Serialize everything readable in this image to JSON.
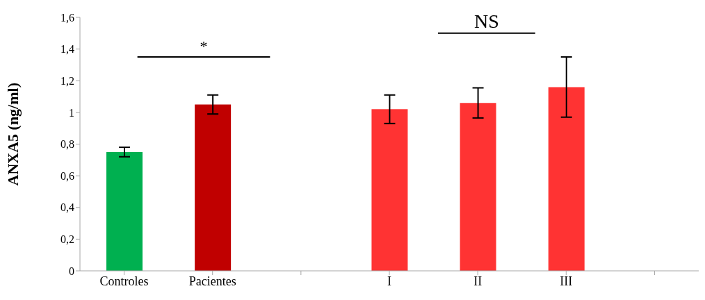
{
  "chart_data": {
    "type": "bar",
    "ylabel": "ANXA5 (ng/ml)",
    "categories": [
      "Controles",
      "Pacientes",
      null,
      "I",
      "II",
      "III",
      null
    ],
    "values": [
      0.75,
      1.05,
      null,
      1.02,
      1.06,
      1.16,
      null
    ],
    "colors": [
      "#00b050",
      "#c00000",
      "#ff3333",
      "#ff3333",
      "#ff3333",
      "#ff3333",
      "#ff3333"
    ],
    "errors": [
      0.03,
      0.06,
      null,
      0.09,
      0.095,
      0.19,
      null
    ],
    "ylim": [
      0,
      1.6
    ],
    "yticks": [
      0,
      {
        "value": 0.2,
        "label": "0,2"
      },
      {
        "value": 0.4,
        "label": "0,4"
      },
      {
        "value": 0.6,
        "label": "0,6"
      },
      {
        "value": 0.8,
        "label": "0,8"
      },
      1,
      {
        "value": 1.2,
        "label": "1,2"
      },
      {
        "value": 1.4,
        "label": "1,4"
      },
      {
        "value": 1.6,
        "label": "1,6"
      }
    ],
    "annotations": [
      "*",
      "NS"
    ],
    "grid": false,
    "legend": false
  }
}
